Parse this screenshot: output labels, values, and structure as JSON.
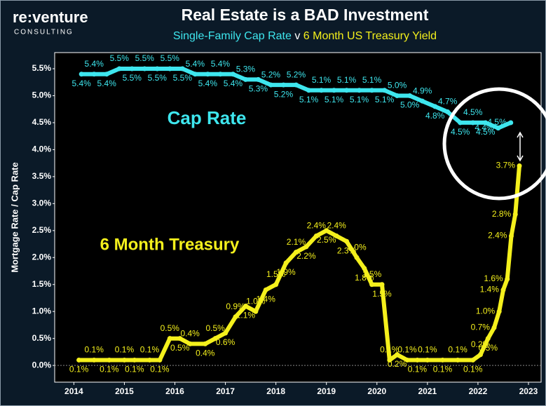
{
  "logo": {
    "name": "re:venture",
    "sub": "CONSULTING"
  },
  "chart_data": {
    "type": "line",
    "title": "Real Estate is a BAD Investment",
    "subtitle": {
      "left": "Single-Family Cap Rate",
      "mid": "v",
      "right": "6 Month US Treasury Yield"
    },
    "ylabel": "Mortgage Rate / Cap Rate",
    "xlim": [
      2013.62,
      2023.25
    ],
    "ylim": [
      -0.31,
      5.63
    ],
    "xticks": [
      2014,
      2015,
      2016,
      2017,
      2018,
      2019,
      2020,
      2021,
      2022,
      2023
    ],
    "yticks": [
      {
        "value": 0,
        "label": "0.0%"
      },
      {
        "value": 0.5,
        "label": "0.5%"
      },
      {
        "value": 1,
        "label": "1.0%"
      },
      {
        "value": 1.5,
        "label": "1.5%"
      },
      {
        "value": 2,
        "label": "2.0%"
      },
      {
        "value": 2.5,
        "label": "2.5%"
      },
      {
        "value": 3,
        "label": "3.0%"
      },
      {
        "value": 3.5,
        "label": "3.5%"
      },
      {
        "value": 4,
        "label": "4.0%"
      },
      {
        "value": 4.5,
        "label": "4.5%"
      },
      {
        "value": 5,
        "label": "5.0%"
      },
      {
        "value": 5.5,
        "label": "5.5%"
      }
    ],
    "grid": false,
    "series": [
      {
        "name": "Cap Rate",
        "color": "#3ee6ee",
        "x": [
          2014.15,
          2014.4,
          2014.65,
          2014.9,
          2015.15,
          2015.4,
          2015.65,
          2015.9,
          2016.15,
          2016.4,
          2016.65,
          2016.9,
          2017.15,
          2017.4,
          2017.65,
          2017.9,
          2018.15,
          2018.4,
          2018.65,
          2018.9,
          2019.15,
          2019.4,
          2019.65,
          2019.9,
          2020.15,
          2020.4,
          2020.65,
          2020.9,
          2021.15,
          2021.4,
          2021.65,
          2021.9,
          2022.15,
          2022.4,
          2022.65
        ],
        "values": [
          5.4,
          5.4,
          5.4,
          5.5,
          5.5,
          5.5,
          5.5,
          5.5,
          5.5,
          5.4,
          5.4,
          5.4,
          5.4,
          5.3,
          5.3,
          5.2,
          5.2,
          5.2,
          5.1,
          5.1,
          5.1,
          5.1,
          5.1,
          5.1,
          5.1,
          5.0,
          5.0,
          4.9,
          4.8,
          4.7,
          4.5,
          4.5,
          4.5,
          4.4,
          4.5
        ],
        "value_labels": [
          "5.4%",
          "5.4%",
          "5.4%",
          "5.5%",
          "5.5%",
          "5.5%",
          "5.5%",
          "5.5%",
          "5.5%",
          "5.4%",
          "5.4%",
          "5.4%",
          "5.4%",
          "5.3%",
          "5.3%",
          "5.2%",
          "5.2%",
          "5.2%",
          "5.1%",
          "5.1%",
          "5.1%",
          "5.1%",
          "5.1%",
          "5.1%",
          "5.1%",
          "5.0%",
          "5.0%",
          "4.9%",
          "4.8%",
          "4.7%",
          "4.5%",
          "4.5%",
          "4.5%",
          "4.4%",
          "4.5%"
        ]
      },
      {
        "name": "6 Month Treasury",
        "color": "#f4f01c",
        "x": [
          2014.1,
          2014.4,
          2014.7,
          2015.0,
          2015.2,
          2015.5,
          2015.7,
          2015.9,
          2016.1,
          2016.3,
          2016.6,
          2016.8,
          2017.0,
          2017.2,
          2017.4,
          2017.6,
          2017.8,
          2018.0,
          2018.2,
          2018.4,
          2018.6,
          2018.8,
          2019.0,
          2019.2,
          2019.4,
          2019.6,
          2019.75,
          2019.9,
          2020.1,
          2020.25,
          2020.4,
          2020.6,
          2020.8,
          2021.0,
          2021.3,
          2021.6,
          2021.9,
          2022.05,
          2022.2,
          2022.32,
          2022.42,
          2022.5,
          2022.58,
          2022.66,
          2022.74,
          2022.82
        ],
        "values": [
          0.1,
          0.1,
          0.1,
          0.1,
          0.1,
          0.1,
          0.1,
          0.5,
          0.5,
          0.4,
          0.4,
          0.5,
          0.6,
          0.9,
          1.1,
          1.0,
          1.4,
          1.5,
          1.9,
          2.1,
          2.2,
          2.4,
          2.5,
          2.4,
          2.3,
          2.0,
          1.8,
          1.5,
          1.5,
          0.1,
          0.2,
          0.1,
          0.1,
          0.1,
          0.1,
          0.1,
          0.1,
          0.2,
          0.5,
          0.7,
          1.0,
          1.4,
          1.6,
          2.4,
          2.8,
          3.7
        ],
        "value_labels": [
          "0.1%",
          "0.1%",
          "0.1%",
          "0.1%",
          "0.1%",
          "0.1%",
          "0.1%",
          "0.5%",
          "0.5%",
          "0.4%",
          "0.4%",
          "0.5%",
          "0.6%",
          "0.9%",
          "1.1%",
          "1.0%",
          "1.4%",
          "1.5%",
          "1.9%",
          "2.1%",
          "2.2%",
          "2.4%",
          "2.5%",
          "2.4%",
          "2.3%",
          "2.0%",
          "1.8%",
          "1.5%",
          "1.5%",
          "0.1%",
          "0.2%",
          "0.1%",
          "0.1%",
          "0.1%",
          "0.1%",
          "0.1%",
          "0.1%",
          "0.2%",
          "0.5%",
          "0.7%",
          "1.0%",
          "1.4%",
          "1.6%",
          "2.4%",
          "2.8%",
          "3.7%"
        ]
      }
    ]
  }
}
